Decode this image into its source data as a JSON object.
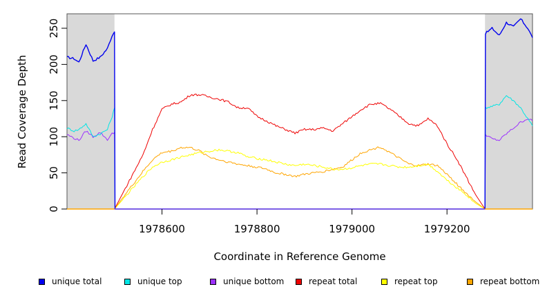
{
  "chart_data": {
    "type": "line",
    "title": "",
    "xlabel": "Coordinate in Reference Genome",
    "ylabel": "Read Coverage Depth",
    "xlim": [
      1978400,
      1979380
    ],
    "ylim": [
      0,
      270
    ],
    "x_ticks": [
      1978600,
      1978800,
      1979000,
      1979200
    ],
    "x_tick_labels": [
      "1978600",
      "1978800",
      "1979000",
      "1979200"
    ],
    "y_ticks": [
      0,
      50,
      100,
      150,
      200,
      250
    ],
    "y_tick_labels": [
      "0",
      "50",
      "100",
      "150",
      "200",
      "250"
    ],
    "shaded_regions": [
      [
        1978400,
        1978500
      ],
      [
        1979280,
        1979380
      ]
    ],
    "legend_position": "bottom",
    "series": [
      {
        "name": "unique total",
        "color": "#0000ee",
        "x": [
          1978400,
          1978415,
          1978425,
          1978440,
          1978455,
          1978470,
          1978485,
          1978495,
          1978500,
          1978501,
          1979280,
          1979281,
          1979295,
          1979310,
          1979325,
          1979340,
          1979355,
          1979370,
          1979380
        ],
        "y": [
          210,
          208,
          203,
          228,
          205,
          210,
          222,
          240,
          245,
          0,
          0,
          243,
          250,
          240,
          258,
          252,
          263,
          250,
          237
        ]
      },
      {
        "name": "unique top",
        "color": "#00e5e5",
        "x": [
          1978400,
          1978415,
          1978425,
          1978440,
          1978455,
          1978470,
          1978485,
          1978495,
          1978500,
          1978501,
          1979280,
          1979281,
          1979295,
          1979310,
          1979325,
          1979340,
          1979355,
          1979370,
          1979380
        ],
        "y": [
          112,
          108,
          110,
          118,
          100,
          104,
          110,
          128,
          140,
          0,
          0,
          140,
          142,
          145,
          157,
          150,
          140,
          125,
          115
        ]
      },
      {
        "name": "unique bottom",
        "color": "#9b30ff",
        "x": [
          1978400,
          1978415,
          1978425,
          1978440,
          1978455,
          1978470,
          1978485,
          1978495,
          1978500,
          1978501,
          1979280,
          1979281,
          1979295,
          1979310,
          1979325,
          1979340,
          1979355,
          1979370,
          1979380
        ],
        "y": [
          103,
          98,
          95,
          108,
          100,
          106,
          96,
          104,
          106,
          0,
          0,
          103,
          97,
          95,
          104,
          112,
          120,
          125,
          122
        ]
      },
      {
        "name": "repeat total",
        "color": "#ee0000",
        "x": [
          1978500,
          1978520,
          1978540,
          1978560,
          1978580,
          1978600,
          1978620,
          1978640,
          1978660,
          1978680,
          1978700,
          1978720,
          1978740,
          1978760,
          1978780,
          1978800,
          1978820,
          1978840,
          1978860,
          1978880,
          1978900,
          1978920,
          1978940,
          1978960,
          1978980,
          1979000,
          1979020,
          1979040,
          1979060,
          1979080,
          1979100,
          1979120,
          1979140,
          1979160,
          1979180,
          1979200,
          1979220,
          1979240,
          1979260,
          1979280
        ],
        "y": [
          0,
          25,
          50,
          75,
          110,
          138,
          145,
          148,
          158,
          158,
          155,
          152,
          148,
          140,
          140,
          128,
          122,
          115,
          110,
          105,
          110,
          110,
          112,
          108,
          118,
          128,
          138,
          145,
          146,
          138,
          128,
          118,
          115,
          125,
          115,
          90,
          70,
          45,
          20,
          0
        ]
      },
      {
        "name": "repeat top",
        "color": "#ffff00",
        "x": [
          1978500,
          1978520,
          1978540,
          1978560,
          1978580,
          1978600,
          1978620,
          1978640,
          1978660,
          1978680,
          1978700,
          1978720,
          1978740,
          1978760,
          1978780,
          1978800,
          1978820,
          1978840,
          1978860,
          1978880,
          1978900,
          1978920,
          1978940,
          1978960,
          1978980,
          1979000,
          1979020,
          1979040,
          1979060,
          1979080,
          1979100,
          1979120,
          1979140,
          1979160,
          1979180,
          1979200,
          1979220,
          1979240,
          1979260,
          1979280
        ],
        "y": [
          0,
          15,
          30,
          45,
          58,
          65,
          68,
          72,
          75,
          78,
          80,
          82,
          80,
          78,
          72,
          70,
          68,
          65,
          62,
          60,
          62,
          60,
          58,
          55,
          55,
          57,
          60,
          62,
          62,
          60,
          58,
          58,
          60,
          62,
          52,
          40,
          30,
          20,
          8,
          0
        ]
      },
      {
        "name": "repeat bottom",
        "color": "#ffa500",
        "x": [
          1978500,
          1978520,
          1978540,
          1978560,
          1978580,
          1978600,
          1978620,
          1978640,
          1978660,
          1978680,
          1978700,
          1978720,
          1978740,
          1978760,
          1978780,
          1978800,
          1978820,
          1978840,
          1978860,
          1978880,
          1978900,
          1978920,
          1978940,
          1978960,
          1978980,
          1979000,
          1979020,
          1979040,
          1979060,
          1979080,
          1979100,
          1979120,
          1979140,
          1979160,
          1979180,
          1979200,
          1979220,
          1979240,
          1979260,
          1979280
        ],
        "y": [
          0,
          18,
          35,
          52,
          68,
          78,
          80,
          85,
          85,
          80,
          72,
          68,
          65,
          62,
          60,
          58,
          55,
          50,
          48,
          45,
          48,
          50,
          52,
          55,
          58,
          68,
          78,
          82,
          86,
          78,
          70,
          62,
          60,
          62,
          60,
          48,
          35,
          22,
          10,
          0
        ]
      }
    ],
    "legend": [
      {
        "label": "unique total",
        "color": "#0000ee"
      },
      {
        "label": "unique top",
        "color": "#00e5e5"
      },
      {
        "label": "unique bottom",
        "color": "#9b30ff"
      },
      {
        "label": "repeat total",
        "color": "#ee0000"
      },
      {
        "label": "repeat top",
        "color": "#ffff00"
      },
      {
        "label": "repeat bottom",
        "color": "#ffa500"
      }
    ]
  }
}
